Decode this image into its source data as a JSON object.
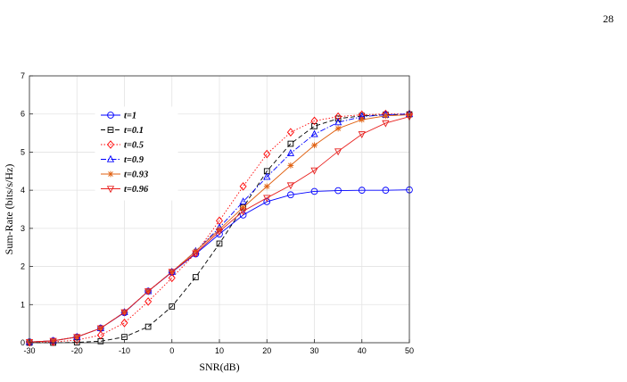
{
  "page": {
    "number": "28"
  },
  "chart_data": {
    "type": "line",
    "title": "",
    "xlabel": "SNR(dB)",
    "ylabel": "Sum-Rate (bits/s/Hz)",
    "xlim": [
      -30,
      50
    ],
    "ylim": [
      0,
      7
    ],
    "xticks": [
      -30,
      -20,
      -10,
      0,
      10,
      20,
      30,
      40,
      50
    ],
    "yticks": [
      0,
      1,
      2,
      3,
      4,
      5,
      6,
      7
    ],
    "grid": true,
    "legend_position": "upper-left",
    "x": [
      -30,
      -25,
      -20,
      -15,
      -10,
      -5,
      0,
      5,
      10,
      15,
      20,
      25,
      30,
      35,
      40,
      45,
      50
    ],
    "series": [
      {
        "name": "t=1",
        "color": "#0000ff",
        "line_style": "solid",
        "marker": "circle",
        "values": [
          0.02,
          0.05,
          0.15,
          0.38,
          0.79,
          1.35,
          1.85,
          2.33,
          2.85,
          3.35,
          3.7,
          3.88,
          3.97,
          3.99,
          4.0,
          4.0,
          4.01
        ]
      },
      {
        "name": "t=0.1",
        "color": "#000000",
        "line_style": "dashed",
        "marker": "square",
        "values": [
          0.0,
          0.0,
          0.01,
          0.04,
          0.15,
          0.42,
          0.95,
          1.72,
          2.6,
          3.55,
          4.5,
          5.22,
          5.68,
          5.88,
          5.95,
          5.98,
          5.99
        ]
      },
      {
        "name": "t=0.5",
        "color": "#ff0000",
        "line_style": "dotted",
        "marker": "diamond",
        "values": [
          0.01,
          0.02,
          0.07,
          0.2,
          0.52,
          1.08,
          1.7,
          2.35,
          3.2,
          4.1,
          4.95,
          5.52,
          5.82,
          5.93,
          5.98,
          6.0,
          6.0
        ]
      },
      {
        "name": "t=0.9",
        "color": "#0000ff",
        "line_style": "dashdot",
        "marker": "triangle-up",
        "values": [
          0.02,
          0.05,
          0.15,
          0.38,
          0.8,
          1.35,
          1.86,
          2.4,
          3.02,
          3.7,
          4.35,
          4.97,
          5.47,
          5.78,
          5.93,
          5.98,
          6.0
        ]
      },
      {
        "name": "t=0.93",
        "color": "#e06010",
        "line_style": "solid",
        "marker": "star",
        "values": [
          0.02,
          0.05,
          0.15,
          0.38,
          0.8,
          1.35,
          1.86,
          2.4,
          2.97,
          3.55,
          4.1,
          4.65,
          5.18,
          5.62,
          5.85,
          5.95,
          5.98
        ]
      },
      {
        "name": "t=0.96",
        "color": "#e8201e",
        "line_style": "solid",
        "marker": "triangle-down",
        "values": [
          0.02,
          0.05,
          0.15,
          0.38,
          0.8,
          1.35,
          1.86,
          2.35,
          2.92,
          3.45,
          3.8,
          4.13,
          4.52,
          5.02,
          5.47,
          5.76,
          5.93
        ]
      }
    ]
  }
}
